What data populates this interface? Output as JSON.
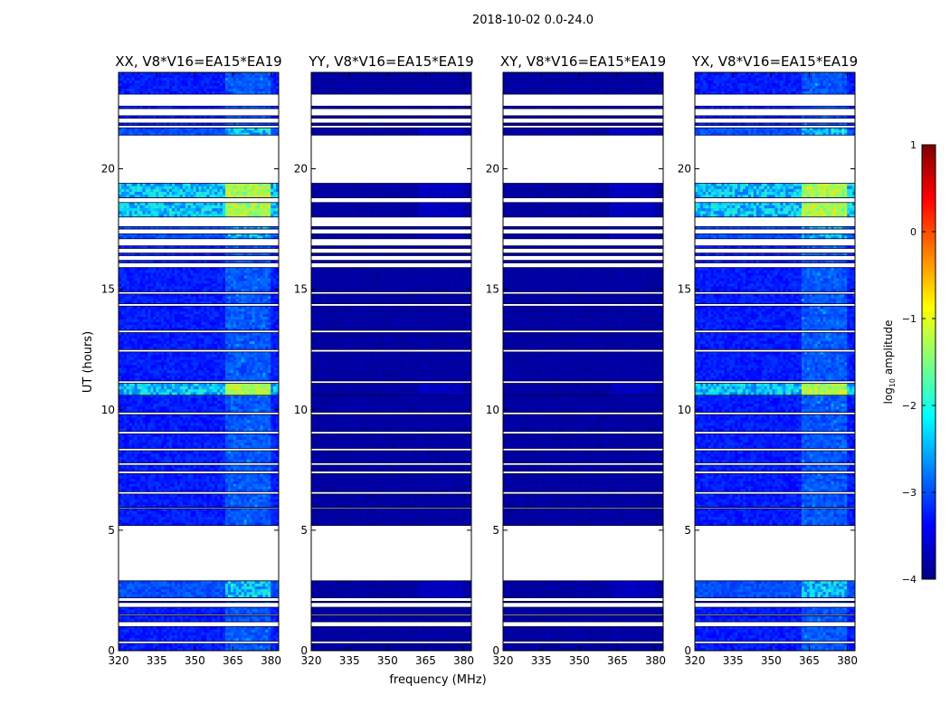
{
  "figure": {
    "suptitle": "2018-10-02 0.0-24.0",
    "ylabel": "UT (hours)",
    "xlabel": "frequency (MHz)"
  },
  "chart_data": [
    {
      "type": "heatmap",
      "title": "XX, V8*V16=EA15*EA19",
      "xlim": [
        320,
        383
      ],
      "ylim": [
        0,
        24
      ],
      "xticks": [
        "320",
        "335",
        "350",
        "365",
        "380"
      ],
      "xtick_values": [
        320,
        335,
        350,
        365,
        380
      ],
      "yticks": [
        "0",
        "5",
        "10",
        "15",
        "20"
      ],
      "ytick_values": [
        0,
        5,
        10,
        15,
        20
      ],
      "intensity": "bright"
    },
    {
      "type": "heatmap",
      "title": "YY, V8*V16=EA15*EA19",
      "xlim": [
        320,
        383
      ],
      "ylim": [
        0,
        24
      ],
      "xticks": [
        "320",
        "335",
        "350",
        "365",
        "380"
      ],
      "xtick_values": [
        320,
        335,
        350,
        365,
        380
      ],
      "yticks": [
        "0",
        "5",
        "10",
        "15",
        "20"
      ],
      "ytick_values": [
        0,
        5,
        10,
        15,
        20
      ],
      "intensity": "dim"
    },
    {
      "type": "heatmap",
      "title": "XY, V8*V16=EA15*EA19",
      "xlim": [
        320,
        383
      ],
      "ylim": [
        0,
        24
      ],
      "xticks": [
        "320",
        "335",
        "350",
        "365",
        "380"
      ],
      "xtick_values": [
        320,
        335,
        350,
        365,
        380
      ],
      "yticks": [
        "0",
        "5",
        "10",
        "15",
        "20"
      ],
      "ytick_values": [
        0,
        5,
        10,
        15,
        20
      ],
      "intensity": "dim"
    },
    {
      "type": "heatmap",
      "title": "YX, V8*V16=EA15*EA19",
      "xlim": [
        320,
        383
      ],
      "ylim": [
        0,
        24
      ],
      "xticks": [
        "320",
        "335",
        "350",
        "365",
        "380"
      ],
      "xtick_values": [
        320,
        335,
        350,
        365,
        380
      ],
      "yticks": [
        "0",
        "5",
        "10",
        "15",
        "20"
      ],
      "ytick_values": [
        0,
        5,
        10,
        15,
        20
      ],
      "intensity": "bright"
    }
  ],
  "data_blocks": [
    {
      "t0": 0.0,
      "t1": 0.3,
      "level": "low"
    },
    {
      "t0": 0.4,
      "t1": 1.0,
      "level": "low"
    },
    {
      "t0": 1.2,
      "t1": 1.45,
      "level": "low"
    },
    {
      "t0": 1.5,
      "t1": 1.8,
      "level": "low"
    },
    {
      "t0": 2.0,
      "t1": 2.05,
      "level": "low"
    },
    {
      "t0": 2.2,
      "t1": 2.9,
      "level": "mid"
    },
    {
      "t0": 5.2,
      "t1": 5.9,
      "level": "low"
    },
    {
      "t0": 5.95,
      "t1": 6.5,
      "level": "low"
    },
    {
      "t0": 6.6,
      "t1": 7.35,
      "level": "low"
    },
    {
      "t0": 7.45,
      "t1": 7.7,
      "level": "low"
    },
    {
      "t0": 7.8,
      "t1": 8.3,
      "level": "low"
    },
    {
      "t0": 8.4,
      "t1": 9.0,
      "level": "low"
    },
    {
      "t0": 9.1,
      "t1": 9.8,
      "level": "low"
    },
    {
      "t0": 9.9,
      "t1": 10.6,
      "level": "low"
    },
    {
      "t0": 10.6,
      "t1": 11.1,
      "level": "high"
    },
    {
      "t0": 11.2,
      "t1": 12.4,
      "level": "low"
    },
    {
      "t0": 12.5,
      "t1": 13.2,
      "level": "low"
    },
    {
      "t0": 13.3,
      "t1": 14.3,
      "level": "low"
    },
    {
      "t0": 14.4,
      "t1": 14.8,
      "level": "low"
    },
    {
      "t0": 14.9,
      "t1": 15.9,
      "level": "low"
    },
    {
      "t0": 16.1,
      "t1": 16.2,
      "level": "low"
    },
    {
      "t0": 16.4,
      "t1": 16.5,
      "level": "low"
    },
    {
      "t0": 16.7,
      "t1": 16.8,
      "level": "low"
    },
    {
      "t0": 17.1,
      "t1": 17.3,
      "level": "mid"
    },
    {
      "t0": 17.5,
      "t1": 17.6,
      "level": "mid"
    },
    {
      "t0": 18.0,
      "t1": 18.6,
      "level": "high"
    },
    {
      "t0": 18.8,
      "t1": 19.4,
      "level": "high"
    },
    {
      "t0": 21.4,
      "t1": 21.7,
      "level": "mid"
    },
    {
      "t0": 21.8,
      "t1": 21.9,
      "level": "low"
    },
    {
      "t0": 22.1,
      "t1": 22.2,
      "level": "low"
    },
    {
      "t0": 22.5,
      "t1": 22.6,
      "level": "low"
    },
    {
      "t0": 23.1,
      "t1": 24.0,
      "level": "low"
    }
  ],
  "colorbar": {
    "label": "log",
    "label_sub": "10",
    "label_rest": " amplitude",
    "ticks": [
      "1",
      "0",
      "−1",
      "−2",
      "−3",
      "−4"
    ],
    "tick_values": [
      1,
      0,
      -1,
      -2,
      -3,
      -4
    ],
    "range": [
      -4,
      1
    ],
    "colormap": "jet",
    "colors": [
      "#00007f",
      "#0000ff",
      "#007fff",
      "#00ffff",
      "#7fff7f",
      "#ffff00",
      "#ff7f00",
      "#ff0000",
      "#7f0000"
    ]
  }
}
